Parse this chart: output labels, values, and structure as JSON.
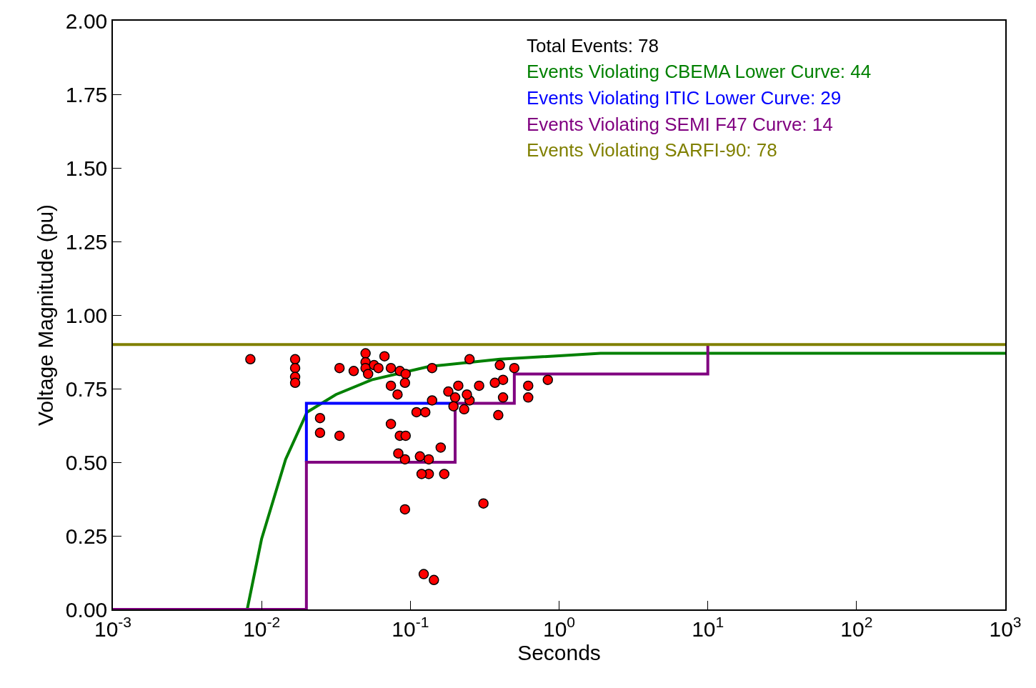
{
  "chart_data": {
    "type": "scatter",
    "xlabel": "Seconds",
    "ylabel": "Voltage Magnitude (pu)",
    "log": "x",
    "xlim": [
      0.001,
      1000
    ],
    "xticks": [
      {
        "value": 0.001,
        "label": "10$^{-3}$"
      },
      {
        "value": 0.01,
        "label": "10$^{-2}$"
      },
      {
        "value": 0.1,
        "label": "10$^{-1}$"
      },
      {
        "value": 1,
        "label": "10$^{0}$"
      },
      {
        "value": 10,
        "label": "10$^{1}$"
      },
      {
        "value": 100,
        "label": "10$^{2}$"
      },
      {
        "value": 1000,
        "label": "10$^{3}$"
      }
    ],
    "ylim": [
      0,
      2
    ],
    "yticks": [
      {
        "value": 0,
        "label": "0.00"
      },
      {
        "value": 0.25,
        "label": "0.25"
      },
      {
        "value": 0.5,
        "label": "0.50"
      },
      {
        "value": 0.75,
        "label": "0.75"
      },
      {
        "value": 1,
        "label": "1.00"
      },
      {
        "value": 1.25,
        "label": "1.25"
      },
      {
        "value": 1.5,
        "label": "1.50"
      },
      {
        "value": 1.75,
        "label": "1.75"
      },
      {
        "value": 2,
        "label": "2.00"
      }
    ],
    "legend": false,
    "annotations": [
      "Total Events: 78"
    ],
    "series": [
      {
        "marker": "circle",
        "color": "#ff0000",
        "x": [
          0.0084,
          0.0168,
          0.0168,
          0.0168,
          0.0168,
          0.0334,
          0.0416,
          0.05,
          0.05,
          0.05,
          0.052,
          0.0247,
          0.0247,
          0.0334,
          0.067,
          0.057,
          0.061,
          0.074,
          0.074,
          0.074,
          0.085,
          0.085,
          0.093,
          0.093,
          0.092,
          0.092,
          0.092,
          0.082,
          0.083,
          0.14,
          0.14,
          0.25,
          0.25,
          0.4,
          0.5,
          0.42,
          0.42,
          0.37,
          0.29,
          0.21,
          0.18,
          0.2,
          0.24,
          0.23,
          0.195,
          0.39,
          0.62,
          0.62,
          0.84,
          0.11,
          0.126,
          0.16,
          0.116,
          0.133,
          0.133,
          0.119,
          0.169,
          0.31,
          0.123,
          0.144
        ],
        "values": [
          0.85,
          0.85,
          0.82,
          0.79,
          0.77,
          0.82,
          0.81,
          0.87,
          0.84,
          0.82,
          0.8,
          0.65,
          0.6,
          0.59,
          0.86,
          0.83,
          0.82,
          0.82,
          0.76,
          0.63,
          0.81,
          0.59,
          0.8,
          0.59,
          0.77,
          0.51,
          0.34,
          0.73,
          0.53,
          0.82,
          0.71,
          0.85,
          0.71,
          0.83,
          0.82,
          0.78,
          0.72,
          0.77,
          0.76,
          0.76,
          0.74,
          0.72,
          0.73,
          0.68,
          0.69,
          0.66,
          0.76,
          0.72,
          0.78,
          0.67,
          0.67,
          0.55,
          0.52,
          0.51,
          0.46,
          0.46,
          0.46,
          0.36,
          0.12,
          0.1
        ]
      },
      {
        "type": "line",
        "marker": "none",
        "name": "Events Violating CBEMA Lower Curve: 44",
        "color": "#008000",
        "x": [
          0.008,
          0.01,
          0.0145,
          0.0202,
          0.0316,
          0.055,
          0.133,
          0.4,
          1.9,
          1000
        ],
        "values": [
          0,
          0.24,
          0.51,
          0.67,
          0.73,
          0.78,
          0.825,
          0.85,
          0.87,
          0.87
        ]
      },
      {
        "type": "line",
        "marker": "none",
        "name": "Events Violating ITIC Lower Curve: 29",
        "color": "#0000ff",
        "x": [
          0.02,
          0.02,
          0.2
        ],
        "values": [
          0.5,
          0.7,
          0.7
        ]
      },
      {
        "type": "line",
        "marker": "none",
        "name": "Events Violating SEMI F47 Curve: 14",
        "color": "#800080",
        "x": [
          0.001,
          0.02,
          0.02,
          0.2,
          0.2,
          0.5,
          0.5,
          10,
          10
        ],
        "values": [
          0,
          0,
          0.5,
          0.5,
          0.7,
          0.7,
          0.8,
          0.8,
          0.9
        ]
      },
      {
        "type": "line",
        "marker": "none",
        "name": "Events Violating SARFI-90: 78",
        "color": "#808000",
        "x": [
          0.001,
          1000
        ],
        "values": [
          0.9,
          0.9
        ]
      }
    ]
  }
}
